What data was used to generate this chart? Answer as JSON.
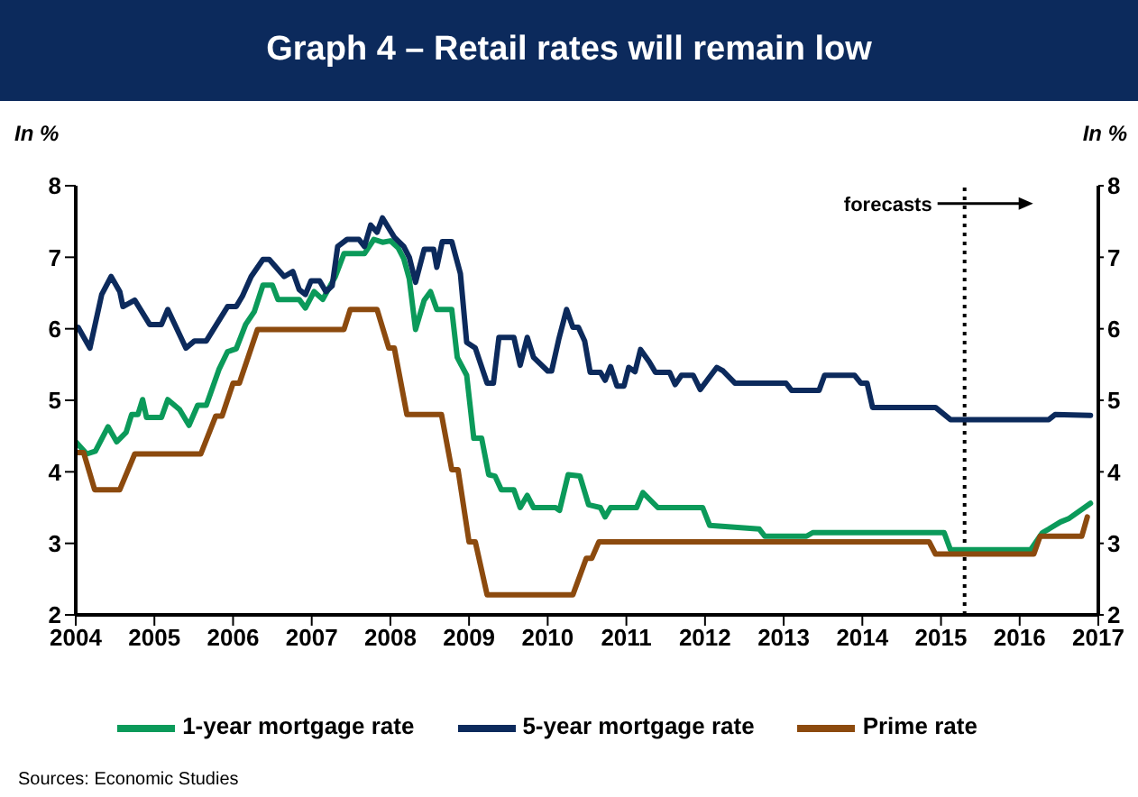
{
  "chart_data": {
    "type": "line",
    "title": "Graph 4 – Retail rates will remain low",
    "ylabel": "In %",
    "y2label": "In %",
    "annotations": [
      {
        "text": "forecasts",
        "x": 2015.3,
        "y": 7.75
      },
      "Sources: Economic Studies"
    ],
    "xlim": [
      2004,
      2017
    ],
    "xticks": [
      2004,
      2005,
      2006,
      2007,
      2008,
      2009,
      2010,
      2011,
      2012,
      2013,
      2014,
      2015,
      2016,
      2017
    ],
    "ylim": [
      2,
      8
    ],
    "yticks": [
      2,
      3,
      4,
      5,
      6,
      7,
      8
    ],
    "y2lim": [
      2,
      8
    ],
    "y2ticks": [
      2,
      3,
      4,
      5,
      6,
      7,
      8
    ],
    "legend": "bottom",
    "marker": "none",
    "line_style": "solid",
    "ref_lines": [
      {
        "axis": "x",
        "value": 2015.3,
        "color": "#000000",
        "line_style": "dotted"
      }
    ],
    "series": [
      {
        "name": "1-year mortgage rate",
        "color": "#0b9a5a",
        "x": [
          2004.0,
          2004.14,
          2004.25,
          2004.41,
          2004.52,
          2004.64,
          2004.71,
          2004.79,
          2004.85,
          2004.9,
          2005.09,
          2005.17,
          2005.32,
          2005.44,
          2005.55,
          2005.66,
          2005.82,
          2005.93,
          2006.04,
          2006.16,
          2006.27,
          2006.38,
          2006.5,
          2006.57,
          2006.84,
          2006.92,
          2007.03,
          2007.14,
          2007.3,
          2007.41,
          2007.67,
          2007.79,
          2007.9,
          2008.0,
          2008.1,
          2008.17,
          2008.24,
          2008.32,
          2008.43,
          2008.51,
          2008.59,
          2008.78,
          2008.85,
          2008.97,
          2009.06,
          2009.16,
          2009.25,
          2009.33,
          2009.41,
          2009.57,
          2009.65,
          2009.74,
          2009.82,
          2010.1,
          2010.15,
          2010.26,
          2010.41,
          2010.52,
          2010.67,
          2010.73,
          2010.8,
          2011.13,
          2011.21,
          2011.4,
          2011.97,
          2012.06,
          2012.69,
          2012.76,
          2013.29,
          2013.37,
          2015.04,
          2015.12,
          2016.14,
          2016.29,
          2016.37,
          2016.52,
          2016.63,
          2016.9
        ],
        "values": [
          4.42,
          4.25,
          4.29,
          4.63,
          4.42,
          4.55,
          4.8,
          4.8,
          5.01,
          4.76,
          4.76,
          5.01,
          4.87,
          4.65,
          4.93,
          4.93,
          5.43,
          5.68,
          5.72,
          6.06,
          6.24,
          6.61,
          6.61,
          6.41,
          6.41,
          6.29,
          6.52,
          6.41,
          6.73,
          7.05,
          7.05,
          7.25,
          7.21,
          7.23,
          7.13,
          6.98,
          6.7,
          5.99,
          6.4,
          6.52,
          6.27,
          6.27,
          5.6,
          5.35,
          4.47,
          4.47,
          3.96,
          3.94,
          3.75,
          3.75,
          3.5,
          3.67,
          3.5,
          3.5,
          3.46,
          3.96,
          3.94,
          3.54,
          3.5,
          3.37,
          3.5,
          3.5,
          3.71,
          3.5,
          3.5,
          3.25,
          3.2,
          3.1,
          3.1,
          3.15,
          3.15,
          2.91,
          2.91,
          3.15,
          3.2,
          3.3,
          3.35,
          3.56
        ]
      },
      {
        "name": "5-year mortgage rate",
        "color": "#0c2a5c",
        "x": [
          2004.03,
          2004.18,
          2004.33,
          2004.45,
          2004.56,
          2004.6,
          2004.75,
          2004.94,
          2005.09,
          2005.17,
          2005.4,
          2005.51,
          2005.66,
          2005.93,
          2006.04,
          2006.12,
          2006.23,
          2006.38,
          2006.46,
          2006.65,
          2006.76,
          2006.84,
          2006.92,
          2006.99,
          2007.1,
          2007.18,
          2007.26,
          2007.33,
          2007.45,
          2007.6,
          2007.67,
          2007.75,
          2007.83,
          2007.9,
          2008.05,
          2008.17,
          2008.24,
          2008.32,
          2008.43,
          2008.55,
          2008.59,
          2008.66,
          2008.78,
          2008.89,
          2008.97,
          2009.08,
          2009.23,
          2009.31,
          2009.38,
          2009.57,
          2009.65,
          2009.74,
          2009.82,
          2010.0,
          2010.05,
          2010.14,
          2010.24,
          2010.32,
          2010.39,
          2010.47,
          2010.54,
          2010.67,
          2010.73,
          2010.8,
          2010.88,
          2010.97,
          2011.03,
          2011.11,
          2011.18,
          2011.29,
          2011.37,
          2011.55,
          2011.62,
          2011.7,
          2011.85,
          2011.94,
          2012.04,
          2012.15,
          2012.23,
          2012.38,
          2013.03,
          2013.1,
          2013.45,
          2013.52,
          2013.9,
          2013.98,
          2014.06,
          2014.13,
          2014.93,
          2015.12,
          2016.37,
          2016.45,
          2016.9
        ],
        "values": [
          6.02,
          5.73,
          6.48,
          6.73,
          6.52,
          6.31,
          6.4,
          6.06,
          6.06,
          6.27,
          5.73,
          5.83,
          5.83,
          6.31,
          6.31,
          6.46,
          6.73,
          6.97,
          6.97,
          6.73,
          6.8,
          6.55,
          6.48,
          6.67,
          6.67,
          6.52,
          6.6,
          7.15,
          7.25,
          7.25,
          7.15,
          7.45,
          7.35,
          7.55,
          7.28,
          7.15,
          7.0,
          6.65,
          7.11,
          7.11,
          6.86,
          7.22,
          7.22,
          6.77,
          5.81,
          5.73,
          5.24,
          5.24,
          5.88,
          5.88,
          5.49,
          5.88,
          5.6,
          5.41,
          5.41,
          5.85,
          6.27,
          6.02,
          6.02,
          5.83,
          5.39,
          5.39,
          5.28,
          5.47,
          5.2,
          5.2,
          5.46,
          5.4,
          5.71,
          5.54,
          5.39,
          5.39,
          5.22,
          5.35,
          5.35,
          5.15,
          5.3,
          5.46,
          5.41,
          5.24,
          5.24,
          5.14,
          5.14,
          5.35,
          5.35,
          5.24,
          5.24,
          4.9,
          4.9,
          4.73,
          4.73,
          4.8,
          4.79
        ]
      },
      {
        "name": "Prime rate",
        "color": "#8c4a0e",
        "x": [
          2004.0,
          2004.1,
          2004.24,
          2004.56,
          2004.75,
          2005.59,
          2005.78,
          2005.86,
          2006.0,
          2006.08,
          2006.31,
          2007.41,
          2007.49,
          2007.83,
          2007.98,
          2008.05,
          2008.21,
          2008.65,
          2008.78,
          2008.86,
          2009.0,
          2009.08,
          2009.23,
          2010.32,
          2010.49,
          2010.56,
          2010.65,
          2014.85,
          2014.93,
          2016.18,
          2016.26,
          2016.79,
          2016.86
        ],
        "values": [
          4.27,
          4.27,
          3.75,
          3.75,
          4.25,
          4.25,
          4.78,
          4.78,
          5.24,
          5.24,
          5.99,
          5.99,
          6.27,
          6.27,
          5.73,
          5.73,
          4.8,
          4.8,
          4.03,
          4.03,
          3.02,
          3.02,
          2.28,
          2.28,
          2.79,
          2.79,
          3.02,
          3.02,
          2.85,
          2.85,
          3.1,
          3.1,
          3.37
        ]
      }
    ]
  }
}
